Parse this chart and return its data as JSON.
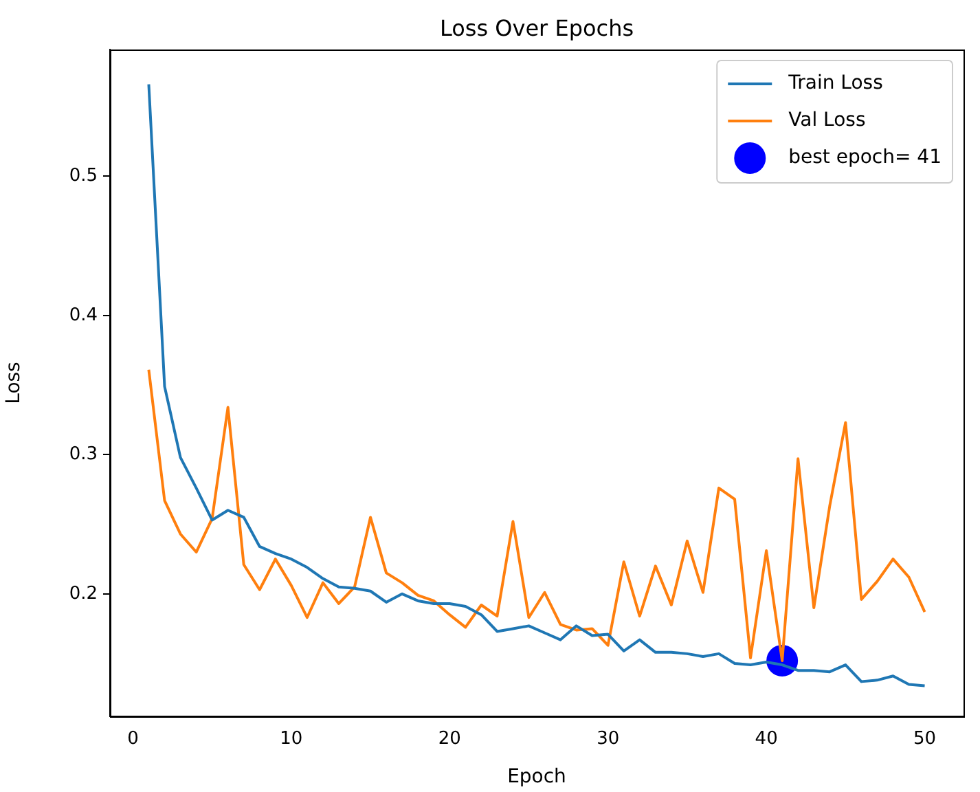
{
  "chart_data": {
    "type": "line",
    "title": "Loss Over Epochs",
    "xlabel": "Epoch",
    "ylabel": "Loss",
    "x": [
      1,
      2,
      3,
      4,
      5,
      6,
      7,
      8,
      9,
      10,
      11,
      12,
      13,
      14,
      15,
      16,
      17,
      18,
      19,
      20,
      21,
      22,
      23,
      24,
      25,
      26,
      27,
      28,
      29,
      30,
      31,
      32,
      33,
      34,
      35,
      36,
      37,
      38,
      39,
      40,
      41,
      42,
      43,
      44,
      45,
      46,
      47,
      48,
      49,
      50
    ],
    "series": [
      {
        "name": "Train Loss",
        "color": "#1f77b4",
        "values": [
          0.566,
          0.349,
          0.298,
          0.276,
          0.253,
          0.26,
          0.255,
          0.234,
          0.229,
          0.225,
          0.219,
          0.211,
          0.205,
          0.204,
          0.202,
          0.194,
          0.2,
          0.195,
          0.193,
          0.193,
          0.191,
          0.185,
          0.173,
          0.175,
          0.177,
          0.172,
          0.167,
          0.177,
          0.17,
          0.171,
          0.159,
          0.167,
          0.158,
          0.158,
          0.157,
          0.155,
          0.157,
          0.15,
          0.149,
          0.151,
          0.149,
          0.145,
          0.145,
          0.144,
          0.149,
          0.137,
          0.138,
          0.141,
          0.135,
          0.134
        ]
      },
      {
        "name": "Val Loss",
        "color": "#ff7f0e",
        "values": [
          0.361,
          0.267,
          0.243,
          0.23,
          0.254,
          0.334,
          0.221,
          0.203,
          0.225,
          0.206,
          0.183,
          0.208,
          0.193,
          0.205,
          0.255,
          0.215,
          0.208,
          0.199,
          0.195,
          0.185,
          0.176,
          0.192,
          0.184,
          0.252,
          0.183,
          0.201,
          0.178,
          0.174,
          0.175,
          0.163,
          0.223,
          0.184,
          0.22,
          0.192,
          0.238,
          0.201,
          0.276,
          0.268,
          0.154,
          0.231,
          0.152,
          0.297,
          0.19,
          0.263,
          0.323,
          0.196,
          0.209,
          0.225,
          0.212,
          0.187
        ]
      },
      {
        "name": "best epoch= 41",
        "type": "scatter",
        "marker": "circle",
        "color": "#0000ff",
        "x": [
          41
        ],
        "values": [
          0.152
        ]
      }
    ],
    "xlim": [
      -1.45,
      52.45
    ],
    "xticks": [
      0,
      10,
      20,
      30,
      40,
      50
    ],
    "ylim": [
      0.112,
      0.591
    ],
    "yticks": [
      0.2,
      0.3,
      0.4,
      0.5
    ],
    "grid": false,
    "legend": "top right",
    "line_style": "solid"
  }
}
